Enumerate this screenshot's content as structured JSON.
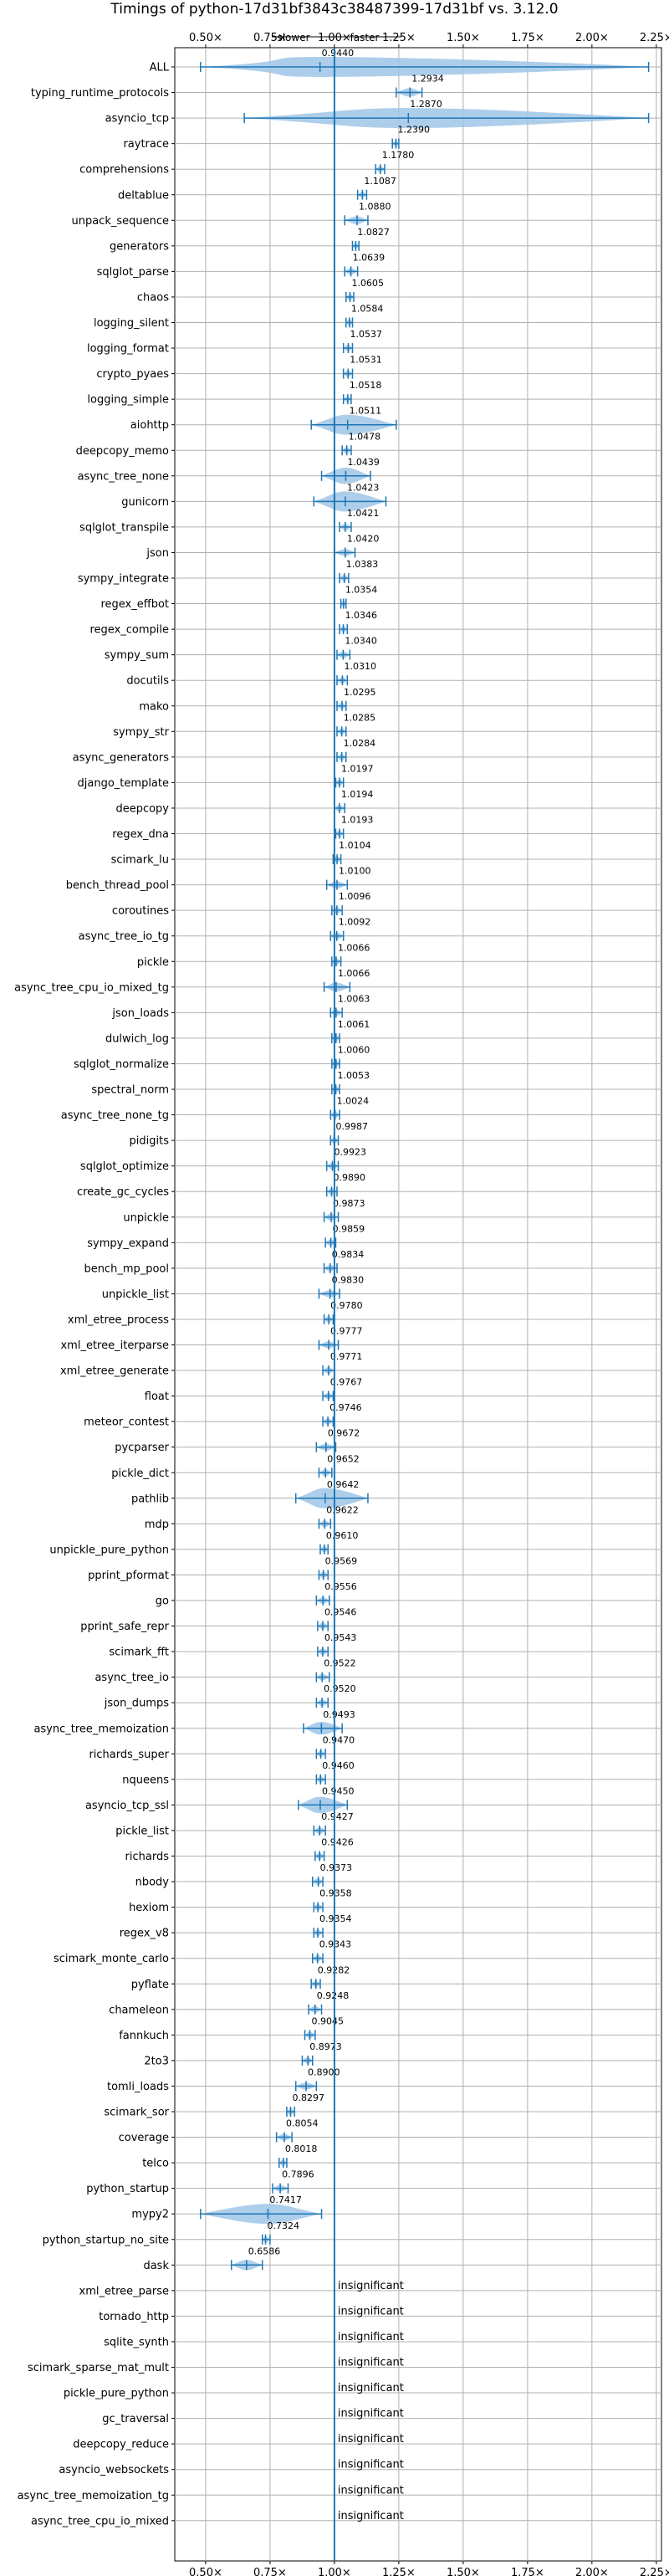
{
  "chart_data": {
    "type": "violin",
    "title": "Timings of python-17d31bf3843c38487399-17d31bf vs. 3.12.0",
    "direction_labels": {
      "slower": "slower",
      "faster": "faster"
    },
    "xlim": [
      0.38,
      2.27
    ],
    "x_ticks": [
      0.5,
      0.75,
      1.0,
      1.25,
      1.5,
      1.75,
      2.0,
      2.25
    ],
    "x_tick_labels": [
      "0.50×",
      "0.75×",
      "1.00×",
      "1.25×",
      "1.50×",
      "1.75×",
      "2.00×",
      "2.25×"
    ],
    "reference_line": 1.0,
    "grid": true,
    "colors": {
      "violin": "#9fc5e8",
      "line": "#1f77b4",
      "median": "#d62728",
      "grid": "#b0b0b0"
    },
    "insignificant_text": "insignificant",
    "categories": [
      "ALL",
      "typing_runtime_protocols",
      "asyncio_tcp",
      "raytrace",
      "comprehensions",
      "deltablue",
      "unpack_sequence",
      "generators",
      "sqlglot_parse",
      "chaos",
      "logging_silent",
      "logging_format",
      "crypto_pyaes",
      "logging_simple",
      "aiohttp",
      "deepcopy_memo",
      "async_tree_none",
      "gunicorn",
      "sqlglot_transpile",
      "json",
      "sympy_integrate",
      "regex_effbot",
      "regex_compile",
      "sympy_sum",
      "docutils",
      "mako",
      "sympy_str",
      "async_generators",
      "django_template",
      "deepcopy",
      "regex_dna",
      "scimark_lu",
      "bench_thread_pool",
      "coroutines",
      "async_tree_io_tg",
      "pickle",
      "async_tree_cpu_io_mixed_tg",
      "json_loads",
      "dulwich_log",
      "sqlglot_normalize",
      "spectral_norm",
      "async_tree_none_tg",
      "pidigits",
      "sqlglot_optimize",
      "create_gc_cycles",
      "unpickle",
      "sympy_expand",
      "bench_mp_pool",
      "unpickle_list",
      "xml_etree_process",
      "xml_etree_iterparse",
      "xml_etree_generate",
      "float",
      "meteor_contest",
      "pycparser",
      "pickle_dict",
      "pathlib",
      "mdp",
      "unpickle_pure_python",
      "pprint_pformat",
      "go",
      "pprint_safe_repr",
      "scimark_fft",
      "async_tree_io",
      "json_dumps",
      "async_tree_memoization",
      "richards_super",
      "nqueens",
      "asyncio_tcp_ssl",
      "pickle_list",
      "richards",
      "nbody",
      "hexiom",
      "regex_v8",
      "scimark_monte_carlo",
      "pyflate",
      "chameleon",
      "fannkuch",
      "2to3",
      "tomli_loads",
      "scimark_sor",
      "coverage",
      "telco",
      "python_startup",
      "mypy2",
      "python_startup_no_site",
      "dask",
      "xml_etree_parse",
      "tornado_http",
      "sqlite_synth",
      "scimark_sparse_mat_mult",
      "pickle_pure_python",
      "gc_traversal",
      "deepcopy_reduce",
      "asyncio_websockets",
      "async_tree_memoization_tg",
      "async_tree_cpu_io_mixed"
    ],
    "values": [
      0.944,
      1.2934,
      1.287,
      1.239,
      1.178,
      1.1087,
      1.088,
      1.0827,
      1.0639,
      1.0605,
      1.0584,
      1.0537,
      1.0531,
      1.0518,
      1.0511,
      1.0478,
      1.0439,
      1.0423,
      1.0421,
      1.042,
      1.0383,
      1.0354,
      1.0346,
      1.034,
      1.031,
      1.0295,
      1.0285,
      1.0284,
      1.0197,
      1.0194,
      1.0193,
      1.0104,
      1.01,
      1.0096,
      1.0092,
      1.0066,
      1.0066,
      1.0063,
      1.0061,
      1.006,
      1.0053,
      1.0024,
      0.9987,
      0.9923,
      0.989,
      0.9873,
      0.9859,
      0.9834,
      0.983,
      0.978,
      0.9777,
      0.9771,
      0.9767,
      0.9746,
      0.9672,
      0.9652,
      0.9642,
      0.9622,
      0.961,
      0.9569,
      0.9556,
      0.9546,
      0.9543,
      0.9522,
      0.952,
      0.9493,
      0.947,
      0.946,
      0.945,
      0.9427,
      0.9426,
      0.9373,
      0.9358,
      0.9354,
      0.9343,
      0.9282,
      0.9248,
      0.9045,
      0.8973,
      0.89,
      0.8297,
      0.8054,
      0.8018,
      0.7896,
      0.7417,
      0.7324,
      0.6586,
      null,
      null,
      null,
      null,
      null,
      null,
      null,
      null,
      null,
      null
    ],
    "value_labels": [
      "0.9440",
      "1.2934",
      "1.2870",
      "1.2390",
      "1.1780",
      "1.1087",
      "1.0880",
      "1.0827",
      "1.0639",
      "1.0605",
      "1.0584",
      "1.0537",
      "1.0531",
      "1.0518",
      "1.0511",
      "1.0478",
      "1.0439",
      "1.0423",
      "1.0421",
      "1.0420",
      "1.0383",
      "1.0354",
      "1.0346",
      "1.0340",
      "1.0310",
      "1.0295",
      "1.0285",
      "1.0284",
      "1.0197",
      "1.0194",
      "1.0193",
      "1.0104",
      "1.0100",
      "1.0096",
      "1.0092",
      "1.0066",
      "1.0066",
      "1.0063",
      "1.0061",
      "1.0060",
      "1.0053",
      "1.0024",
      "0.9987",
      "0.9923",
      "0.9890",
      "0.9873",
      "0.9859",
      "0.9834",
      "0.9830",
      "0.9780",
      "0.9777",
      "0.9771",
      "0.9767",
      "0.9746",
      "0.9672",
      "0.9652",
      "0.9642",
      "0.9622",
      "0.9610",
      "0.9569",
      "0.9556",
      "0.9546",
      "0.9543",
      "0.9522",
      "0.9520",
      "0.9493",
      "0.9470",
      "0.9460",
      "0.9450",
      "0.9427",
      "0.9426",
      "0.9373",
      "0.9358",
      "0.9354",
      "0.9343",
      "0.9282",
      "0.9248",
      "0.9045",
      "0.8973",
      "0.8900",
      "0.8297",
      "0.8054",
      "0.8018",
      "0.7896",
      "0.7417",
      "0.7324",
      "0.6586",
      "insignificant",
      "insignificant",
      "insignificant",
      "insignificant",
      "insignificant",
      "insignificant",
      "insignificant",
      "insignificant",
      "insignificant",
      "insignificant"
    ],
    "ranges": [
      [
        0.48,
        2.22
      ],
      [
        1.24,
        1.34
      ],
      [
        0.65,
        2.22
      ],
      [
        1.225,
        1.25
      ],
      [
        1.16,
        1.195
      ],
      [
        1.09,
        1.125
      ],
      [
        1.04,
        1.13
      ],
      [
        1.07,
        1.095
      ],
      [
        1.04,
        1.09
      ],
      [
        1.045,
        1.075
      ],
      [
        1.045,
        1.07
      ],
      [
        1.035,
        1.07
      ],
      [
        1.035,
        1.07
      ],
      [
        1.035,
        1.065
      ],
      [
        0.91,
        1.24
      ],
      [
        1.03,
        1.065
      ],
      [
        0.95,
        1.14
      ],
      [
        0.92,
        1.2
      ],
      [
        1.02,
        1.065
      ],
      [
        1.0,
        1.08
      ],
      [
        1.02,
        1.055
      ],
      [
        1.025,
        1.045
      ],
      [
        1.02,
        1.05
      ],
      [
        1.01,
        1.06
      ],
      [
        1.01,
        1.05
      ],
      [
        1.01,
        1.045
      ],
      [
        1.01,
        1.045
      ],
      [
        1.01,
        1.045
      ],
      [
        1.005,
        1.035
      ],
      [
        1.0,
        1.04
      ],
      [
        1.005,
        1.035
      ],
      [
        0.995,
        1.025
      ],
      [
        0.97,
        1.05
      ],
      [
        0.99,
        1.03
      ],
      [
        0.985,
        1.035
      ],
      [
        0.99,
        1.025
      ],
      [
        0.96,
        1.06
      ],
      [
        0.985,
        1.03
      ],
      [
        0.99,
        1.02
      ],
      [
        0.99,
        1.02
      ],
      [
        0.99,
        1.02
      ],
      [
        0.985,
        1.02
      ],
      [
        0.985,
        1.015
      ],
      [
        0.97,
        1.015
      ],
      [
        0.97,
        1.01
      ],
      [
        0.96,
        1.015
      ],
      [
        0.965,
        1.005
      ],
      [
        0.96,
        1.01
      ],
      [
        0.94,
        1.02
      ],
      [
        0.96,
        0.995
      ],
      [
        0.94,
        1.015
      ],
      [
        0.955,
        1.0
      ],
      [
        0.955,
        0.995
      ],
      [
        0.955,
        0.995
      ],
      [
        0.93,
        1.005
      ],
      [
        0.94,
        0.99
      ],
      [
        0.85,
        1.13
      ],
      [
        0.94,
        0.985
      ],
      [
        0.945,
        0.975
      ],
      [
        0.94,
        0.975
      ],
      [
        0.93,
        0.98
      ],
      [
        0.935,
        0.975
      ],
      [
        0.935,
        0.975
      ],
      [
        0.93,
        0.98
      ],
      [
        0.93,
        0.975
      ],
      [
        0.88,
        1.03
      ],
      [
        0.93,
        0.965
      ],
      [
        0.93,
        0.965
      ],
      [
        0.86,
        1.05
      ],
      [
        0.92,
        0.965
      ],
      [
        0.925,
        0.96
      ],
      [
        0.915,
        0.955
      ],
      [
        0.92,
        0.955
      ],
      [
        0.92,
        0.955
      ],
      [
        0.915,
        0.955
      ],
      [
        0.91,
        0.945
      ],
      [
        0.9,
        0.95
      ],
      [
        0.885,
        0.925
      ],
      [
        0.875,
        0.915
      ],
      [
        0.85,
        0.93
      ],
      [
        0.815,
        0.845
      ],
      [
        0.775,
        0.835
      ],
      [
        0.785,
        0.815
      ],
      [
        0.76,
        0.82
      ],
      [
        0.48,
        0.95
      ],
      [
        0.72,
        0.75
      ],
      [
        0.6,
        0.72
      ],
      null,
      null,
      null,
      null,
      null,
      null,
      null,
      null,
      null,
      null
    ]
  }
}
